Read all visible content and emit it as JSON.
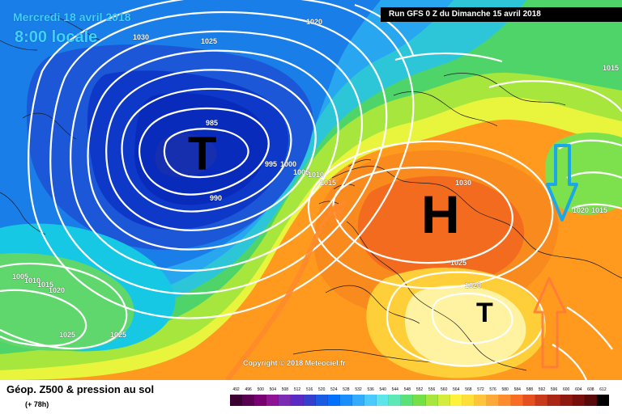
{
  "header": {
    "date": "Mercredi 18 avril 2018",
    "hour": "8:00 locale",
    "run": "Run GFS 0 Z du Dimanche 15 avril 2018"
  },
  "footer": {
    "product": "Géop. Z500 & pression au sol",
    "step": "(+ 78h)",
    "copyright": "Copyright © 2018 Meteociel.fr"
  },
  "systems": {
    "low_main": "T",
    "high_main": "H",
    "low_south": "T"
  },
  "isobars": {
    "i985": "985",
    "i990": "990",
    "i995": "995",
    "i1000": "1000",
    "i1005": "1005",
    "i1010": "1010",
    "i1015a": "1015",
    "i1020a": "1020",
    "i1025a": "1025",
    "i1030a": "1030",
    "i1030h": "1030",
    "i1025h": "1025",
    "i1020s": "1020",
    "i1020e": "1020",
    "i1015e": "1015",
    "i1015ne": "1015",
    "i1005w": "1005",
    "i1010w": "1010",
    "i1015w": "1015",
    "i1020w": "1020",
    "i1025sw": "1025",
    "i1025sw2": "1025"
  },
  "colorbar": {
    "labels": [
      "492",
      "496",
      "500",
      "504",
      "508",
      "512",
      "516",
      "520",
      "524",
      "528",
      "532",
      "536",
      "540",
      "544",
      "548",
      "552",
      "556",
      "560",
      "564",
      "568",
      "572",
      "576",
      "580",
      "584",
      "588",
      "592",
      "596",
      "600",
      "604",
      "608",
      "612"
    ],
    "colors": [
      "#3b0032",
      "#590052",
      "#780072",
      "#8f1395",
      "#7c2bb3",
      "#5a2bc4",
      "#3340cd",
      "#1a5be3",
      "#0070ff",
      "#1a8eff",
      "#33acff",
      "#4cc9ff",
      "#5ee5ea",
      "#5ee8b6",
      "#5ce07a",
      "#75df47",
      "#a7e63c",
      "#d5ed3a",
      "#fff23a",
      "#ffde3a",
      "#ffc43a",
      "#ffa83a",
      "#ff8b2e",
      "#f86c25",
      "#e4501f",
      "#c83a1a",
      "#aa2716",
      "#8e1911",
      "#770f0d",
      "#580909",
      "#000000"
    ]
  },
  "arrows": {
    "cold_advection_color": "#1aa8e6",
    "warm_advection_color": "#ff6a1a"
  }
}
